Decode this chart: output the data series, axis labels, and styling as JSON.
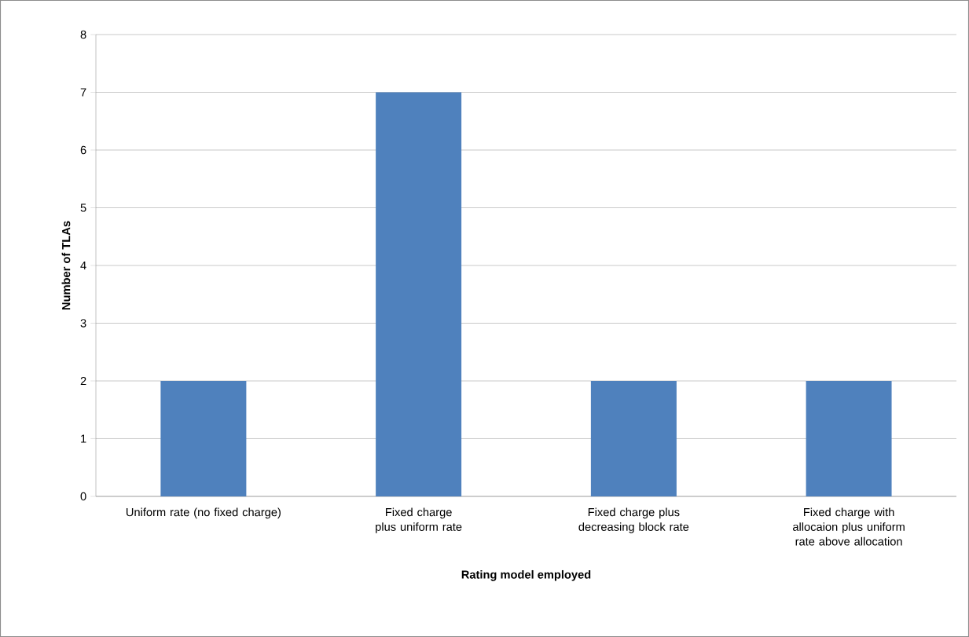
{
  "chart_data": {
    "type": "bar",
    "xlabel": "Rating model employed",
    "ylabel": "Number of TLAs",
    "categories": [
      "Uniform rate (no fixed charge)",
      "Fixed charge plus uniform rate",
      "Fixed charge plus decreasing block rate",
      "Fixed charge with allocaion plus uniform rate above allocation"
    ],
    "values": [
      2,
      7,
      2,
      2
    ],
    "color": "#4f81bd",
    "ylim": [
      0,
      8
    ],
    "yticks": [
      0,
      1,
      2,
      3,
      4,
      5,
      6,
      7,
      8
    ],
    "grid": "y"
  }
}
